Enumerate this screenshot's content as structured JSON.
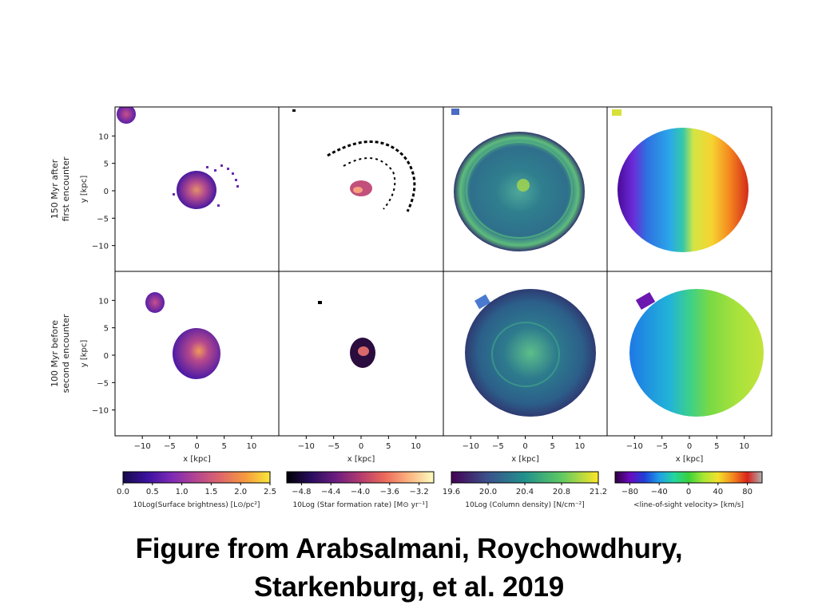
{
  "row_labels": [
    [
      "150 Myr after",
      "first encounter"
    ],
    [
      "100 Myr before",
      "second encounter"
    ]
  ],
  "y_axis_label": "y [kpc]",
  "x_axis_label": "x [kpc]",
  "y_ticks": [
    "10",
    "5",
    "0",
    "−5",
    "−10"
  ],
  "x_ticks": [
    "−10",
    "−5",
    "0",
    "5",
    "10"
  ],
  "colorbars": [
    {
      "name": "surface-brightness",
      "label": "10Log(Surface brightness) [L⊙/pc²]",
      "ticks": [
        "0.0",
        "0.5",
        "1.0",
        "1.5",
        "2.0",
        "2.5"
      ],
      "stops": [
        "#160a4a",
        "#3c12a0",
        "#7e2ab5",
        "#b5468f",
        "#e0686a",
        "#f79a3e",
        "#f8e83b"
      ]
    },
    {
      "name": "star-formation-rate",
      "label": "10Log (Star formation rate) [M⊙ yr⁻¹]",
      "ticks": [
        "−4.8",
        "−4.4",
        "−4.0",
        "−3.6",
        "−3.2"
      ],
      "stops": [
        "#000004",
        "#2a0c5e",
        "#6b1d80",
        "#b33a6f",
        "#ec6a5a",
        "#fcb582",
        "#fcfdbf"
      ]
    },
    {
      "name": "column-density",
      "label": "10Log (Column density) [N/cm⁻²]",
      "ticks": [
        "19.6",
        "20.0",
        "20.4",
        "20.8",
        "21.2"
      ],
      "stops": [
        "#440154",
        "#3b528b",
        "#21918c",
        "#5ec962",
        "#fde725"
      ]
    },
    {
      "name": "line-of-sight-velocity",
      "label": "<line-of-sight velocity> [km/s]",
      "ticks": [
        "−80",
        "−40",
        "0",
        "40",
        "80"
      ],
      "stops": [
        "#30003f",
        "#6a0bbf",
        "#1f3fd8",
        "#1f9ee8",
        "#23d6a0",
        "#3bd13b",
        "#a7e634",
        "#f3e12c",
        "#f58a1e",
        "#d8231b",
        "#b0b0b0"
      ]
    }
  ],
  "caption": {
    "line1": "Figure from Arabsalmani, Roychowdhury,",
    "line2_name": "Starkenburg",
    "line2_rest": ", et al. 2019"
  }
}
